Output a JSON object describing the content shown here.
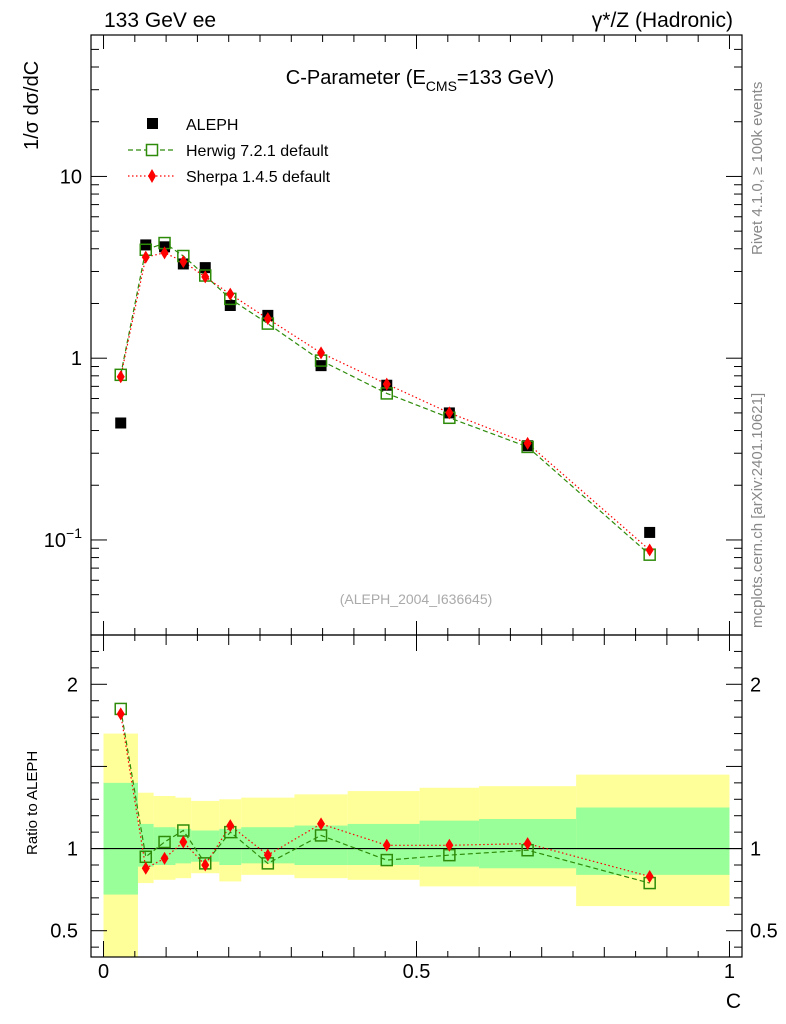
{
  "header": {
    "left": "133 GeV ee",
    "right": "γ*/Z (Hadronic)"
  },
  "side_text": {
    "rivet": "Rivet 4.1.0, ≥ 100k events",
    "mcplots": "mcplots.cern.ch [arXiv:2401.10621]"
  },
  "colors": {
    "data": "#000000",
    "herwig": "#2e8b0a",
    "sherpa": "#ff0000",
    "band_inner": "#99ff99",
    "band_outer": "#ffff99"
  },
  "chart_data": [
    {
      "type": "scatter",
      "panel": "main",
      "title": "C-Parameter (E",
      "title_sub": "CMS",
      "title_rest": "=133 GeV)",
      "watermark": "(ALEPH_2004_I636645)",
      "ylabel": "1/σ  dσ/dC",
      "yscale": "log",
      "ylim": [
        0.03,
        60
      ],
      "xlim": [
        -0.02,
        1.02
      ],
      "yticks": [
        {
          "value": 10,
          "label": "10"
        },
        {
          "value": 1,
          "label": "1"
        },
        {
          "value": 0.1,
          "label": "10",
          "sup": "−1"
        }
      ],
      "legend": [
        {
          "key": "data",
          "label": "ALEPH"
        },
        {
          "key": "herwig",
          "label": "Herwig 7.2.1 default"
        },
        {
          "key": "sherpa",
          "label": "Sherpa 1.4.5 default"
        }
      ],
      "x": [
        0.0275,
        0.0675,
        0.0975,
        0.1275,
        0.1625,
        0.2025,
        0.2625,
        0.3475,
        0.4525,
        0.5525,
        0.6775,
        0.8725
      ],
      "series": [
        {
          "name": "ALEPH",
          "key": "data",
          "values": [
            0.44,
            4.2,
            4.1,
            3.3,
            3.15,
            1.95,
            1.72,
            0.91,
            0.71,
            0.5,
            0.33,
            0.11
          ]
        },
        {
          "name": "Herwig 7.2.1 default",
          "key": "herwig",
          "values": [
            0.81,
            3.95,
            4.3,
            3.65,
            2.85,
            2.12,
            1.55,
            0.97,
            0.64,
            0.47,
            0.325,
            0.083
          ]
        },
        {
          "name": "Sherpa 1.4.5 default",
          "key": "sherpa",
          "values": [
            0.79,
            3.6,
            3.8,
            3.4,
            2.8,
            2.25,
            1.65,
            1.07,
            0.72,
            0.5,
            0.34,
            0.088
          ]
        }
      ]
    },
    {
      "type": "line",
      "panel": "ratio",
      "ylabel": "Ratio to ALEPH",
      "xlabel": "C",
      "ylim": [
        0.34,
        2.3
      ],
      "xlim": [
        -0.02,
        1.02
      ],
      "yticks": [
        {
          "value": 2,
          "label": "2"
        },
        {
          "value": 1,
          "label": "1"
        },
        {
          "value": 0.5,
          "label": "0.5"
        }
      ],
      "xticks": [
        {
          "value": 0,
          "label": "0"
        },
        {
          "value": 0.5,
          "label": "0.5"
        },
        {
          "value": 1,
          "label": "1"
        }
      ],
      "bands": {
        "edges": [
          0.0,
          0.055,
          0.08,
          0.115,
          0.14,
          0.185,
          0.22,
          0.305,
          0.39,
          0.505,
          0.6,
          0.755,
          1.0
        ],
        "outer_low": [
          0.0,
          0.79,
          0.81,
          0.82,
          0.85,
          0.8,
          0.84,
          0.82,
          0.81,
          0.77,
          0.77,
          0.65
        ],
        "outer_high": [
          1.7,
          1.34,
          1.32,
          1.31,
          1.29,
          1.3,
          1.31,
          1.33,
          1.35,
          1.37,
          1.38,
          1.45
        ],
        "inner_low": [
          0.72,
          0.89,
          0.9,
          0.91,
          0.92,
          0.9,
          0.91,
          0.9,
          0.9,
          0.89,
          0.88,
          0.84
        ],
        "inner_high": [
          1.4,
          1.15,
          1.13,
          1.12,
          1.11,
          1.12,
          1.13,
          1.14,
          1.15,
          1.17,
          1.18,
          1.25
        ]
      },
      "x": [
        0.0275,
        0.0675,
        0.0975,
        0.1275,
        0.1625,
        0.2025,
        0.2625,
        0.3475,
        0.4525,
        0.5525,
        0.6775,
        0.8725
      ],
      "series": [
        {
          "name": "Herwig 7.2.1 default",
          "key": "herwig",
          "values": [
            1.85,
            0.95,
            1.04,
            1.11,
            0.91,
            1.1,
            0.91,
            1.08,
            0.93,
            0.96,
            0.99,
            0.79
          ]
        },
        {
          "name": "Sherpa 1.4.5 default",
          "key": "sherpa",
          "values": [
            1.82,
            0.88,
            0.94,
            1.04,
            0.9,
            1.14,
            0.96,
            1.15,
            1.02,
            1.02,
            1.03,
            0.83
          ]
        }
      ]
    }
  ]
}
